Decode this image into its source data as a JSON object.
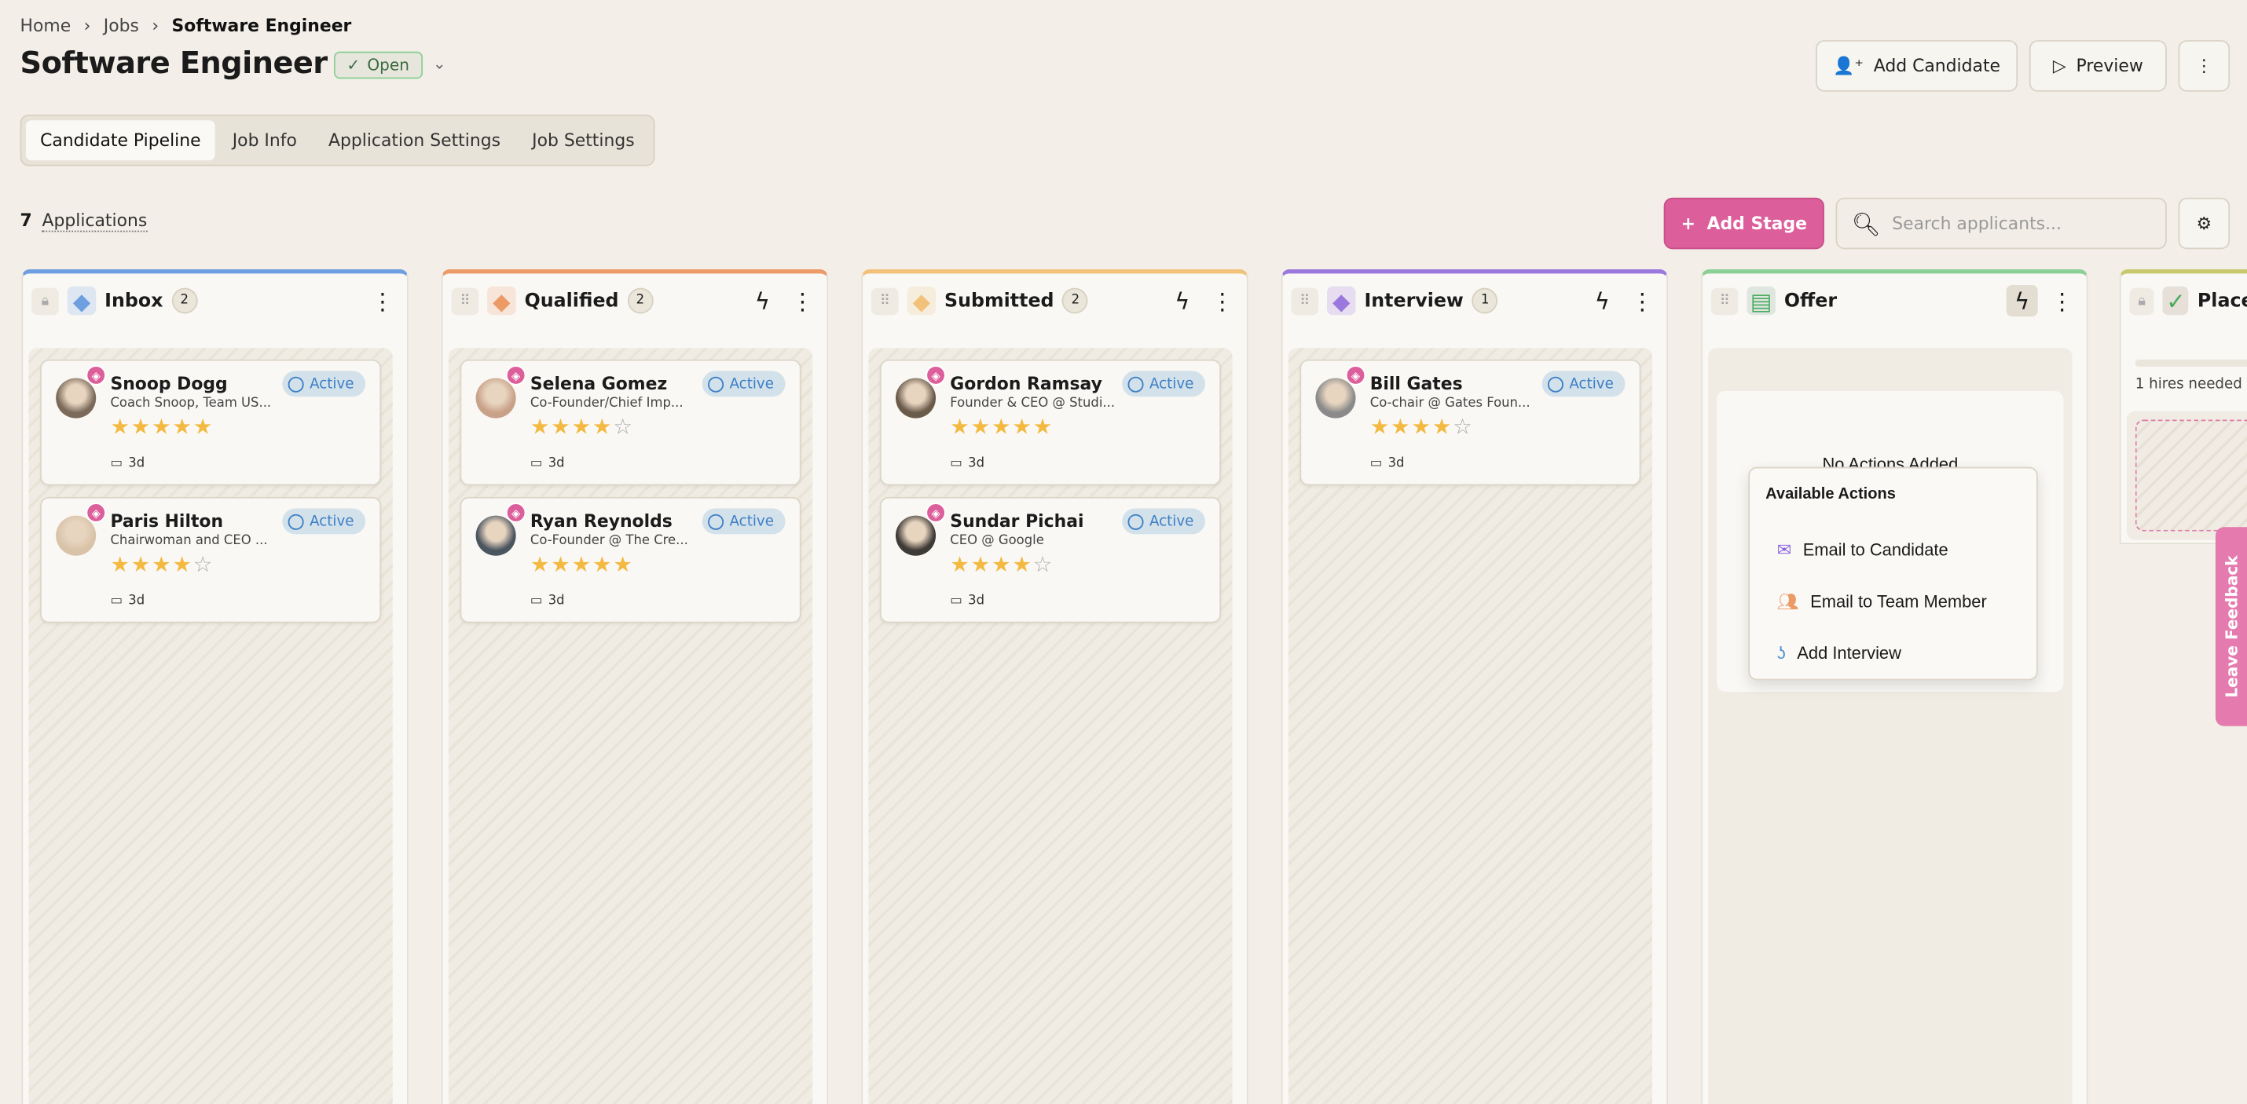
{
  "breadcrumb": {
    "items": [
      "Home",
      "Jobs"
    ],
    "current": "Software Engineer"
  },
  "header": {
    "title": "Software Engineer",
    "status": "Open",
    "add_candidate": "Add Candidate",
    "preview": "Preview"
  },
  "tabs": [
    "Candidate Pipeline",
    "Job Info",
    "Application Settings",
    "Job Settings"
  ],
  "toolbar": {
    "count": "7",
    "count_label": "Applications",
    "add_stage": "Add Stage",
    "search_placeholder": "Search applicants..."
  },
  "colors": {
    "accent": "#dc5e9b",
    "star": "#f3b940",
    "active": "#3d7fc6"
  },
  "columns": [
    {
      "name": "Inbox",
      "count": "2",
      "color": "#6f9fe0",
      "icon": "inbox-icon",
      "cards": [
        {
          "name": "Snoop Dogg",
          "role": "Coach Snoop, Team US...",
          "rating": 5,
          "status": "Active",
          "age": "3d"
        },
        {
          "name": "Paris Hilton",
          "role": "Chairwoman and CEO ...",
          "rating": 4,
          "status": "Active",
          "age": "3d"
        }
      ]
    },
    {
      "name": "Qualified",
      "count": "2",
      "color": "#ec9a66",
      "icon": "stamp-icon",
      "cards": [
        {
          "name": "Selena Gomez",
          "role": "Co-Founder/Chief Imp...",
          "rating": 4,
          "status": "Active",
          "age": "3d"
        },
        {
          "name": "Ryan Reynolds",
          "role": "Co-Founder @ The Cre...",
          "rating": 5,
          "status": "Active",
          "age": "3d"
        }
      ]
    },
    {
      "name": "Submitted",
      "count": "2",
      "color": "#f2c27a",
      "icon": "send-icon",
      "cards": [
        {
          "name": "Gordon Ramsay",
          "role": "Founder & CEO @ Studi...",
          "rating": 5,
          "status": "Active",
          "age": "3d"
        },
        {
          "name": "Sundar Pichai",
          "role": "CEO @ Google",
          "rating": 4,
          "status": "Active",
          "age": "3d"
        }
      ]
    },
    {
      "name": "Interview",
      "count": "1",
      "color": "#9a78dd",
      "icon": "user-icon",
      "cards": [
        {
          "name": "Bill Gates",
          "role": "Co-chair @ Gates Foun...",
          "rating": 4,
          "status": "Active",
          "age": "3d"
        }
      ]
    }
  ],
  "offer": {
    "name": "Offer",
    "color": "#8ccf97",
    "empty": "No Actions Added"
  },
  "placed": {
    "name": "Placed",
    "hires": "1 hires needed"
  },
  "actions_menu": {
    "title": "Available Actions",
    "items": [
      "Email to Candidate",
      "Email to Team Member",
      "Add Interview"
    ]
  },
  "feedback": "Leave Feedback"
}
